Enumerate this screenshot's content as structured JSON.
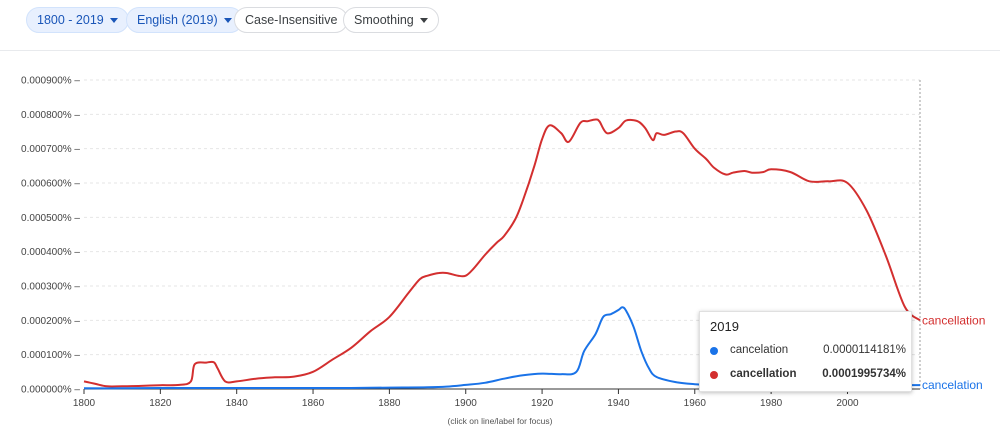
{
  "toolbar": {
    "year_range": "1800 - 2019",
    "corpus": "English (2019)",
    "case": "Case-Insensitive",
    "smoothing": "Smoothing"
  },
  "tooltip": {
    "year": "2019",
    "rows": [
      {
        "term": "cancelation",
        "value": "0.0000114181%",
        "color": "#1a73e8"
      },
      {
        "term": "cancellation",
        "value": "0.0001995734%",
        "color": "#d32f2f"
      }
    ]
  },
  "footnote": "(click on line/label for focus)",
  "chart_data": {
    "type": "line",
    "xlim": [
      1800,
      2019
    ],
    "ylim": [
      0,
      0.0009
    ],
    "y_ticks": [
      0,
      0.0001,
      0.0002,
      0.0003,
      0.0004,
      0.0005,
      0.0006,
      0.0007,
      0.0008,
      0.0009
    ],
    "y_tick_labels": [
      "0.000000%",
      "0.000100%",
      "0.000200%",
      "0.000300%",
      "0.000400%",
      "0.000500%",
      "0.000600%",
      "0.000700%",
      "0.000800%",
      "0.000900%"
    ],
    "x_ticks": [
      1800,
      1820,
      1840,
      1860,
      1880,
      1900,
      1920,
      1940,
      1960,
      1980,
      2000
    ],
    "grid": "horizontal dashed",
    "series": [
      {
        "name": "cancellation",
        "color": "#d32f2f",
        "x": [
          1800,
          1803,
          1806,
          1810,
          1815,
          1820,
          1825,
          1828,
          1829,
          1832,
          1834,
          1835,
          1837,
          1840,
          1845,
          1850,
          1855,
          1860,
          1865,
          1870,
          1875,
          1880,
          1885,
          1888,
          1890,
          1893,
          1895,
          1898,
          1900,
          1902,
          1905,
          1908,
          1910,
          1913,
          1915,
          1918,
          1920,
          1922,
          1925,
          1927,
          1930,
          1932,
          1934,
          1935,
          1937,
          1940,
          1942,
          1945,
          1947,
          1949,
          1950,
          1952,
          1955,
          1957,
          1960,
          1963,
          1965,
          1968,
          1970,
          1973,
          1975,
          1978,
          1980,
          1985,
          1990,
          1995,
          2000,
          2005,
          2010,
          2015,
          2019
        ],
        "y": [
          2.2e-05,
          1.5e-05,
          8e-06,
          8e-06,
          9e-06,
          1.1e-05,
          1.2e-05,
          2.2e-05,
          7.2e-05,
          7.7e-05,
          7.8e-05,
          6e-05,
          2.2e-05,
          2.2e-05,
          3e-05,
          3.4e-05,
          3.6e-05,
          5e-05,
          8.5e-05,
          0.00012,
          0.000168,
          0.00021,
          0.00028,
          0.00032,
          0.00033,
          0.000338,
          0.000338,
          0.00033,
          0.00033,
          0.00035,
          0.00039,
          0.000425,
          0.000445,
          0.000495,
          0.00055,
          0.00065,
          0.000728,
          0.000768,
          0.000745,
          0.00072,
          0.000775,
          0.00078,
          0.000785,
          0.00078,
          0.000745,
          0.00076,
          0.000782,
          0.00078,
          0.00076,
          0.000725,
          0.000745,
          0.00074,
          0.00075,
          0.000745,
          0.0007,
          0.00067,
          0.000645,
          0.000625,
          0.00063,
          0.000635,
          0.00063,
          0.000632,
          0.00064,
          0.000632,
          0.000605,
          0.000605,
          0.0006,
          0.00052,
          0.00039,
          0.00024,
          0.0002
        ]
      },
      {
        "name": "cancelation",
        "color": "#1a73e8",
        "x": [
          1800,
          1810,
          1820,
          1830,
          1840,
          1850,
          1860,
          1870,
          1880,
          1890,
          1895,
          1900,
          1905,
          1910,
          1915,
          1920,
          1925,
          1929,
          1931,
          1934,
          1936,
          1938,
          1940,
          1941,
          1942,
          1944,
          1946,
          1948,
          1950,
          1955,
          1960,
          1965,
          1970,
          1980,
          1990,
          2000,
          2010,
          2019
        ],
        "y": [
          2e-06,
          2e-06,
          3e-06,
          3e-06,
          3e-06,
          3e-06,
          3e-06,
          3e-06,
          4e-06,
          5e-06,
          7e-06,
          1.2e-05,
          1.8e-05,
          3e-05,
          4e-05,
          4.5e-05,
          4.3e-05,
          5e-05,
          0.00011,
          0.00016,
          0.00021,
          0.000218,
          0.00023,
          0.000238,
          0.000228,
          0.00018,
          0.00011,
          6e-05,
          3.5e-05,
          2e-05,
          1.4e-05,
          1.2e-05,
          1.1e-05,
          1.1e-05,
          1.1e-05,
          1.1e-05,
          1.1e-05,
          1.14e-05
        ]
      }
    ]
  }
}
